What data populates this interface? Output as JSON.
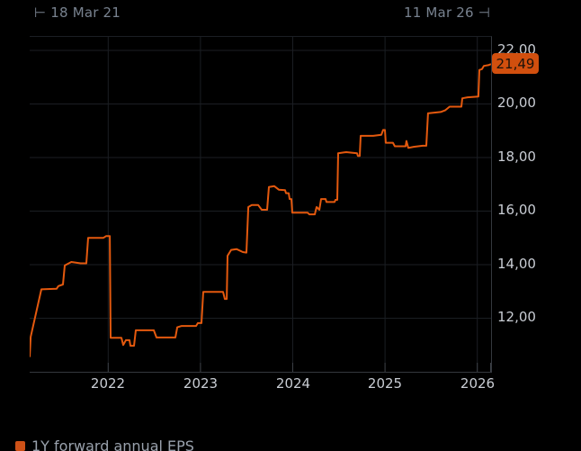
{
  "header": {
    "start_label": "⊢  18 Mar 21",
    "end_label": "11 Mar 26  ⊣"
  },
  "price_tag": {
    "label": "21,49"
  },
  "legend": {
    "label": "1Y forward annual EPS"
  },
  "colors": {
    "background": "#000000",
    "line": "#e4590e",
    "grid": "#1b1e23",
    "axis": "#34383e",
    "tick": "#3c4046",
    "axis_text": "#c9cdd4",
    "date_text": "#78828f",
    "tag_bg": "#d14f0e",
    "tag_text": "#1a120a",
    "legend_text": "#99a1ac",
    "legend_swatch": "#ce5117"
  },
  "chart_data": {
    "type": "line",
    "title": "",
    "xlabel": "",
    "ylabel": "",
    "legend_position": "bottom-left",
    "grid": true,
    "x_start_label": "18 Mar 21",
    "x_end_label": "11 Mar 26",
    "x_range": [
      2021.149,
      2026.149
    ],
    "y_range": [
      10.0,
      22.504
    ],
    "y_ticks": [
      {
        "value": 22,
        "label": "22,00"
      },
      {
        "value": 20,
        "label": "20,00"
      },
      {
        "value": 18,
        "label": "18,00"
      },
      {
        "value": 16,
        "label": "16,00"
      },
      {
        "value": 14,
        "label": "14,00"
      },
      {
        "value": 12,
        "label": "12,00"
      }
    ],
    "x_ticks": [
      {
        "value": 2022,
        "label": "2022"
      },
      {
        "value": 2023,
        "label": "2023"
      },
      {
        "value": 2024,
        "label": "2024"
      },
      {
        "value": 2025,
        "label": "2025"
      },
      {
        "value": 2026,
        "label": "2026"
      }
    ],
    "last_value": 21.49,
    "last_value_label": "21,49",
    "series": [
      {
        "name": "1Y forward annual EPS",
        "color": "#e4590e",
        "points": [
          [
            2021.149,
            10.55
          ],
          [
            2021.16,
            11.3
          ],
          [
            2021.276,
            13.08
          ],
          [
            2021.44,
            13.1
          ],
          [
            2021.46,
            13.2
          ],
          [
            2021.51,
            13.26
          ],
          [
            2021.529,
            13.97
          ],
          [
            2021.6,
            14.1
          ],
          [
            2021.7,
            14.05
          ],
          [
            2021.763,
            14.05
          ],
          [
            2021.783,
            15.0
          ],
          [
            2021.948,
            15.0
          ],
          [
            2021.978,
            15.07
          ],
          [
            2022.017,
            15.07
          ],
          [
            2022.026,
            11.27
          ],
          [
            2022.143,
            11.27
          ],
          [
            2022.163,
            11.0
          ],
          [
            2022.192,
            11.18
          ],
          [
            2022.231,
            11.18
          ],
          [
            2022.241,
            10.97
          ],
          [
            2022.28,
            10.97
          ],
          [
            2022.299,
            11.55
          ],
          [
            2022.494,
            11.55
          ],
          [
            2022.523,
            11.28
          ],
          [
            2022.728,
            11.28
          ],
          [
            2022.748,
            11.66
          ],
          [
            2022.796,
            11.71
          ],
          [
            2022.952,
            11.71
          ],
          [
            2022.972,
            11.82
          ],
          [
            2023.011,
            11.82
          ],
          [
            2023.03,
            12.98
          ],
          [
            2023.245,
            12.98
          ],
          [
            2023.264,
            12.72
          ],
          [
            2023.284,
            12.72
          ],
          [
            2023.293,
            14.33
          ],
          [
            2023.332,
            14.55
          ],
          [
            2023.391,
            14.58
          ],
          [
            2023.459,
            14.47
          ],
          [
            2023.498,
            14.45
          ],
          [
            2023.518,
            16.15
          ],
          [
            2023.556,
            16.23
          ],
          [
            2023.625,
            16.23
          ],
          [
            2023.664,
            16.05
          ],
          [
            2023.722,
            16.05
          ],
          [
            2023.742,
            16.9
          ],
          [
            2023.8,
            16.93
          ],
          [
            2023.849,
            16.8
          ],
          [
            2023.917,
            16.78
          ],
          [
            2023.927,
            16.67
          ],
          [
            2023.956,
            16.67
          ],
          [
            2023.966,
            16.45
          ],
          [
            2023.985,
            16.45
          ],
          [
            2023.995,
            15.94
          ],
          [
            2024.161,
            15.94
          ],
          [
            2024.18,
            15.88
          ],
          [
            2024.239,
            15.88
          ],
          [
            2024.258,
            16.15
          ],
          [
            2024.288,
            16.05
          ],
          [
            2024.307,
            16.45
          ],
          [
            2024.356,
            16.45
          ],
          [
            2024.365,
            16.34
          ],
          [
            2024.453,
            16.34
          ],
          [
            2024.463,
            16.42
          ],
          [
            2024.482,
            16.42
          ],
          [
            2024.492,
            18.16
          ],
          [
            2024.58,
            18.2
          ],
          [
            2024.697,
            18.16
          ],
          [
            2024.706,
            18.06
          ],
          [
            2024.726,
            18.06
          ],
          [
            2024.736,
            18.81
          ],
          [
            2024.872,
            18.81
          ],
          [
            2024.96,
            18.85
          ],
          [
            2024.979,
            19.03
          ],
          [
            2024.999,
            19.03
          ],
          [
            2025.008,
            18.55
          ],
          [
            2025.086,
            18.55
          ],
          [
            2025.106,
            18.42
          ],
          [
            2025.223,
            18.42
          ],
          [
            2025.232,
            18.62
          ],
          [
            2025.252,
            18.36
          ],
          [
            2025.31,
            18.4
          ],
          [
            2025.408,
            18.44
          ],
          [
            2025.447,
            18.44
          ],
          [
            2025.466,
            19.65
          ],
          [
            2025.603,
            19.7
          ],
          [
            2025.651,
            19.76
          ],
          [
            2025.7,
            19.9
          ],
          [
            2025.827,
            19.9
          ],
          [
            2025.837,
            20.21
          ],
          [
            2025.895,
            20.25
          ],
          [
            2026.012,
            20.28
          ],
          [
            2026.022,
            21.27
          ],
          [
            2026.051,
            21.3
          ],
          [
            2026.071,
            21.42
          ],
          [
            2026.119,
            21.45
          ],
          [
            2026.149,
            21.49
          ]
        ]
      }
    ]
  }
}
